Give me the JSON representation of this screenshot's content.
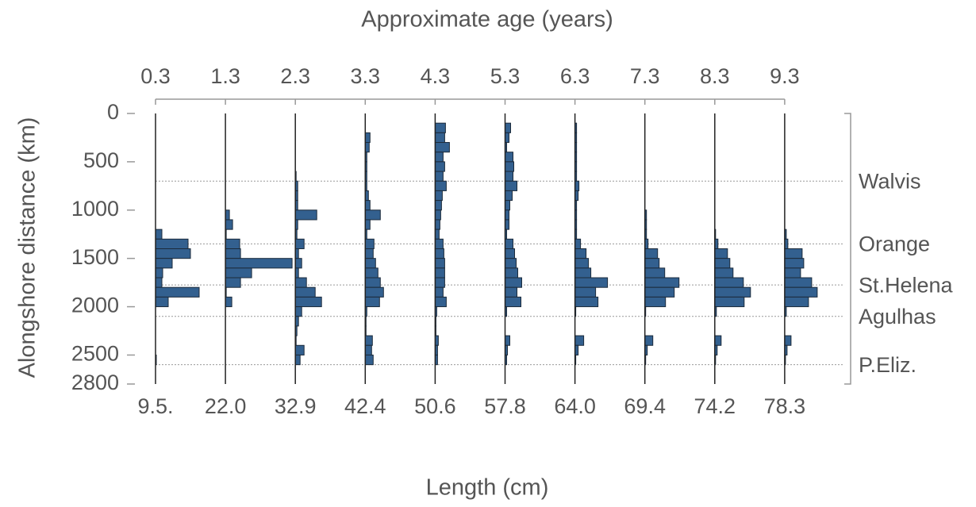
{
  "chart_data": {
    "type": "histogram",
    "title": "Approximate age (years)",
    "y_label": "Alongshore distance (km)",
    "x_label": "Length (cm)",
    "ylim": [
      0,
      2800
    ],
    "yticks": [
      0,
      500,
      1000,
      1500,
      2000,
      2500,
      2800
    ],
    "bins": [
      0,
      100,
      200,
      300,
      400,
      500,
      600,
      700,
      800,
      900,
      1000,
      1100,
      1200,
      1300,
      1400,
      1500,
      1600,
      1700,
      1800,
      1900,
      2000,
      2100,
      2200,
      2300,
      2400,
      2500,
      2600,
      2700,
      2800
    ],
    "color": "#33608f",
    "panels": [
      {
        "age": 0.3,
        "length": "9.5.",
        "values": [
          0,
          0,
          0,
          0,
          0,
          0,
          0,
          0,
          0,
          0,
          0,
          0,
          8,
          41,
          44,
          21,
          9,
          8,
          55,
          16,
          0,
          0,
          0,
          0,
          0,
          1,
          0,
          0
        ]
      },
      {
        "age": 1.3,
        "length": "22.0",
        "values": [
          0,
          0,
          0,
          0,
          0,
          0,
          0,
          0,
          0,
          0,
          5,
          9,
          1,
          18,
          19,
          84,
          33,
          19,
          1,
          8,
          0,
          0,
          0,
          0,
          0,
          0,
          0,
          0
        ]
      },
      {
        "age": 2.3,
        "length": "32.9",
        "values": [
          0,
          0,
          0,
          0,
          0,
          0,
          1,
          3,
          3,
          3,
          27,
          3,
          2,
          11,
          4,
          8,
          4,
          14,
          25,
          33,
          8,
          4,
          2,
          1,
          11,
          6,
          0,
          0
        ]
      },
      {
        "age": 3.3,
        "length": "42.4",
        "values": [
          0,
          0,
          6,
          5,
          2,
          2,
          2,
          2,
          4,
          6,
          19,
          6,
          2,
          11,
          10,
          13,
          16,
          19,
          23,
          18,
          2,
          1,
          1,
          9,
          8,
          10,
          0,
          0
        ]
      },
      {
        "age": 4.3,
        "length": "50.6",
        "values": [
          0,
          13,
          12,
          18,
          10,
          12,
          10,
          14,
          9,
          8,
          7,
          6,
          5,
          10,
          11,
          12,
          12,
          12,
          10,
          14,
          2,
          1,
          1,
          4,
          3,
          3,
          0,
          0
        ]
      },
      {
        "age": 5.3,
        "length": "57.8",
        "values": [
          0,
          7,
          5,
          2,
          10,
          11,
          10,
          15,
          9,
          6,
          5,
          5,
          2,
          10,
          12,
          14,
          16,
          21,
          15,
          20,
          2,
          0,
          0,
          6,
          3,
          2,
          0,
          0
        ]
      },
      {
        "age": 6.3,
        "length": "64.0",
        "values": [
          0,
          2,
          2,
          2,
          2,
          2,
          2,
          5,
          4,
          2,
          2,
          2,
          2,
          7,
          14,
          17,
          20,
          41,
          26,
          29,
          1,
          0,
          0,
          11,
          4,
          1,
          0,
          0
        ]
      },
      {
        "age": 7.3,
        "length": "69.4",
        "values": [
          0,
          0,
          0,
          0,
          0,
          0,
          0,
          0,
          0,
          0,
          2,
          2,
          2,
          4,
          16,
          18,
          25,
          43,
          37,
          26,
          1,
          0,
          0,
          10,
          3,
          1,
          0,
          0
        ]
      },
      {
        "age": 8.3,
        "length": "74.2",
        "values": [
          0,
          0,
          0,
          0,
          0,
          0,
          0,
          0,
          0,
          0,
          0,
          0,
          1,
          4,
          16,
          19,
          23,
          36,
          45,
          37,
          2,
          0,
          0,
          8,
          3,
          1,
          0,
          0
        ]
      },
      {
        "age": 9.3,
        "length": "78.3",
        "values": [
          0,
          0,
          0,
          0,
          0,
          0,
          0,
          0,
          0,
          0,
          0,
          0,
          2,
          4,
          22,
          24,
          20,
          34,
          41,
          30,
          2,
          0,
          0,
          8,
          3,
          1,
          0,
          0
        ]
      }
    ],
    "regions": [
      {
        "label": "Walvis",
        "km": 700
      },
      {
        "label": "Orange",
        "km": 1350
      },
      {
        "label": "St.Helena",
        "km": 1775
      },
      {
        "label": "Agulhas",
        "km": 2100
      },
      {
        "label": "P.Eliz.",
        "km": 2600
      }
    ]
  }
}
